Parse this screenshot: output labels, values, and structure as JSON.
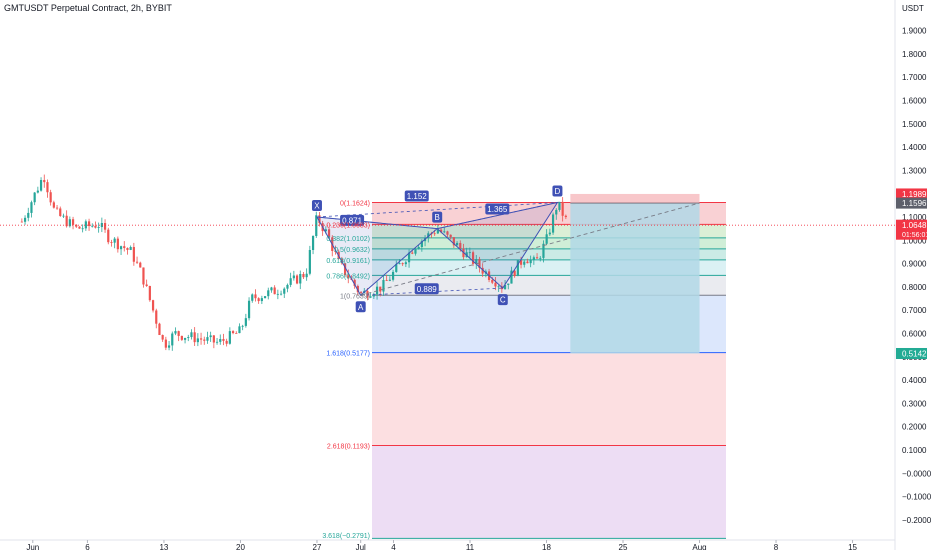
{
  "header": {
    "title": "GMTUSDT Perpetual Contract, 2h, BYBIT"
  },
  "colors": {
    "up": "#26a69a",
    "down": "#ef5350",
    "pattern": "#3f51b5",
    "fib_blue": "#2962ff",
    "fib_red": "#f23645",
    "stop_zone": "#f7c1c4",
    "target_zone": "#b2d8e6",
    "last_price_badge": "#f23645",
    "target_badge": "#22ab94"
  },
  "chart_data": {
    "type": "candlestick",
    "title": "GMTUSDT Perpetual Contract, 2h, BYBIT",
    "y_unit": "USDT",
    "ylim": [
      -0.22,
      2.0
    ],
    "y_ticks": [
      "1.9000",
      "1.8000",
      "1.7000",
      "1.6000",
      "1.5000",
      "1.4000",
      "1.3000",
      "1.2000",
      "1.1000",
      "1.0000",
      "0.9000",
      "0.8000",
      "0.7000",
      "0.6000",
      "0.5000",
      "0.4000",
      "0.3000",
      "0.2000",
      "0.1000",
      "−0.0000",
      "−0.1000",
      "−0.2000"
    ],
    "x_ticks": [
      "Jun",
      "6",
      "13",
      "20",
      "27",
      "Jul",
      "4",
      "11",
      "18",
      "25",
      "Aug",
      "8",
      "15"
    ],
    "price_path": [
      [
        "2022-05-31",
        1.08
      ],
      [
        "2022-06-01",
        1.18
      ],
      [
        "2022-06-02",
        1.28
      ],
      [
        "2022-06-03",
        1.12
      ],
      [
        "2022-06-05",
        1.05
      ],
      [
        "2022-06-07",
        1.07
      ],
      [
        "2022-06-08",
        1.01
      ],
      [
        "2022-06-10",
        0.95
      ],
      [
        "2022-06-11",
        0.85
      ],
      [
        "2022-06-13",
        0.55
      ],
      [
        "2022-06-14",
        0.6
      ],
      [
        "2022-06-16",
        0.58
      ],
      [
        "2022-06-18",
        0.56
      ],
      [
        "2022-06-20",
        0.61
      ],
      [
        "2022-06-21",
        0.75
      ],
      [
        "2022-06-23",
        0.78
      ],
      [
        "2022-06-24",
        0.8
      ],
      [
        "2022-06-25",
        0.83
      ],
      [
        "2022-06-26",
        0.86
      ],
      [
        "2022-06-27",
        1.1
      ],
      [
        "2022-06-28",
        1.02
      ],
      [
        "2022-06-29",
        0.9
      ],
      [
        "2022-07-01",
        0.77
      ],
      [
        "2022-07-03",
        0.8
      ],
      [
        "2022-07-06",
        0.98
      ],
      [
        "2022-07-08",
        1.05
      ],
      [
        "2022-07-10",
        0.97
      ],
      [
        "2022-07-12",
        0.88
      ],
      [
        "2022-07-14",
        0.8
      ],
      [
        "2022-07-16",
        0.93
      ],
      [
        "2022-07-17",
        0.9
      ],
      [
        "2022-07-18",
        1.0
      ],
      [
        "2022-07-19",
        1.16
      ],
      [
        "2022-07-20",
        1.065
      ]
    ],
    "harmonic_pattern": {
      "points": [
        {
          "label": "X",
          "date": "2022-06-27",
          "price": 1.1
        },
        {
          "label": "A",
          "date": "2022-07-01",
          "price": 0.7639
        },
        {
          "label": "B",
          "date": "2022-07-08",
          "price": 1.05
        },
        {
          "label": "C",
          "date": "2022-07-14",
          "price": 0.795
        },
        {
          "label": "D",
          "date": "2022-07-19",
          "price": 1.1624
        }
      ],
      "ratio_labels": [
        "0.871",
        "1.152",
        "0.889",
        "1.365"
      ]
    },
    "fib_levels": [
      {
        "label": "0(1.1624)",
        "value": 1.1624
      },
      {
        "label": "0.236(1.0683)",
        "value": 1.0683
      },
      {
        "label": "0.382(1.0102)",
        "value": 1.0102
      },
      {
        "label": "0.5(0.9632)",
        "value": 0.9632
      },
      {
        "label": "0.618(0.9161)",
        "value": 0.9161
      },
      {
        "label": "0.786(0.8492)",
        "value": 0.8492
      },
      {
        "label": "1(0.7639)",
        "value": 0.7639
      },
      {
        "label": "1.618(0.5177)",
        "value": 0.5177
      },
      {
        "label": "2.618(0.1193)",
        "value": 0.1193
      },
      {
        "label": "3.618(−0.2791)",
        "value": -0.2791
      }
    ],
    "position_tool": {
      "start": "2022-07-20",
      "end": "2022-08-01",
      "entry": 1.1596,
      "stop": 1.1989,
      "target": 0.5142
    },
    "trend_line": {
      "from": [
        "2022-07-01",
        0.7639
      ],
      "to": [
        "2022-08-01",
        1.16
      ]
    },
    "price_labels": [
      {
        "name": "stop-price-badge",
        "value": "1.1989"
      },
      {
        "name": "entry-price-badge",
        "value": "1.1596"
      },
      {
        "name": "current-price-badge",
        "value": "1.0648",
        "countdown": "01:56:01"
      },
      {
        "name": "target-price-badge",
        "value": "0.5142"
      }
    ]
  }
}
